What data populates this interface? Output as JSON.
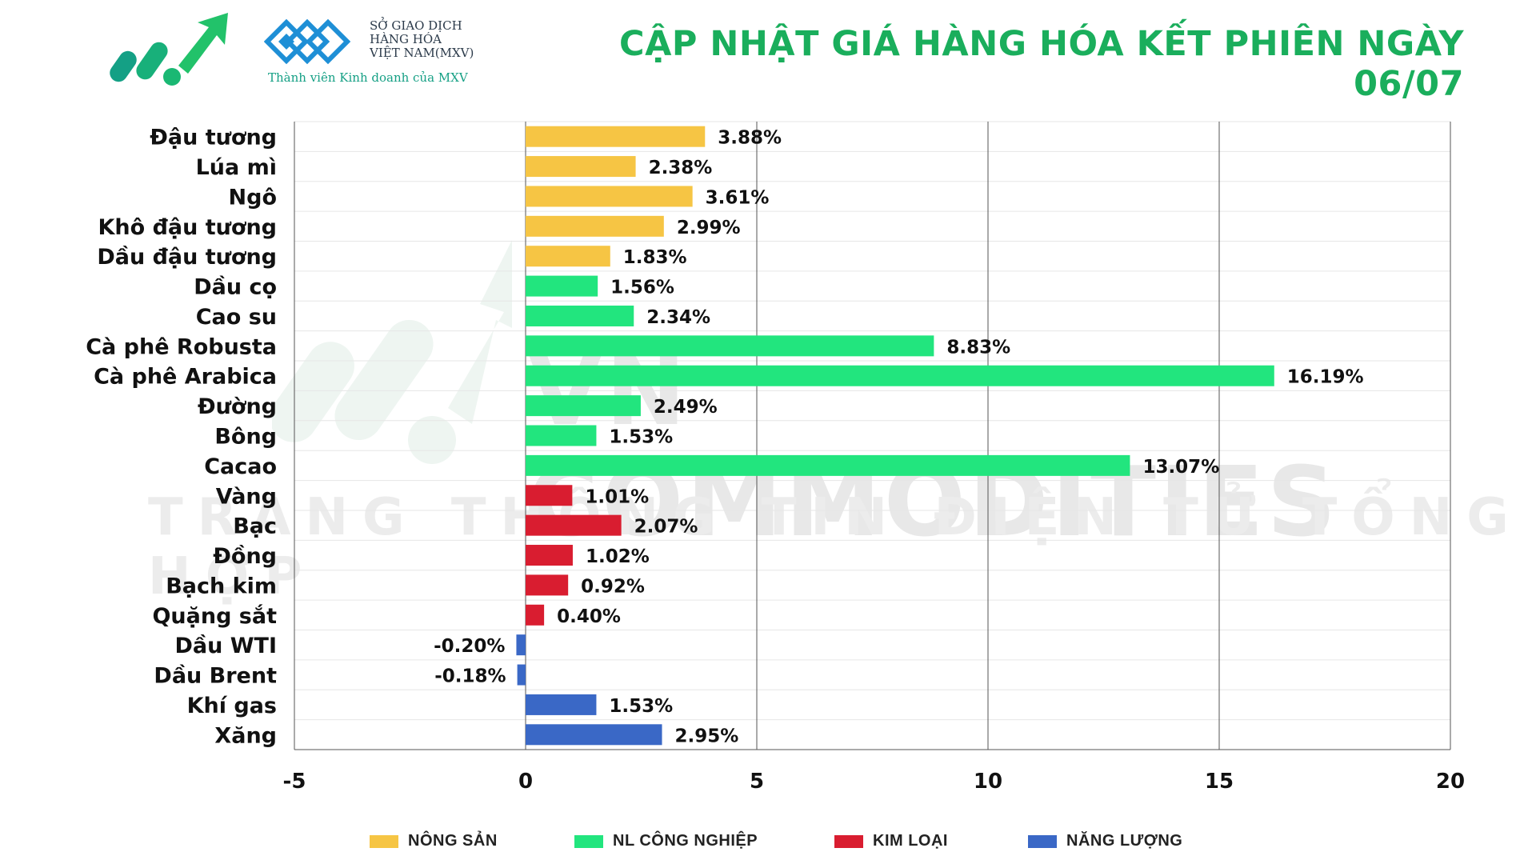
{
  "header": {
    "mxv_line1": "SỞ GIAO DỊCH",
    "mxv_line2": "HÀNG HÓA",
    "mxv_line3": "VIỆT NAM(MXV)",
    "mxv_subtitle": "Thành viên Kinh doanh của MXV",
    "title": "CẬP NHẬT GIÁ HÀNG HÓA KẾT PHIÊN NGÀY 06/07"
  },
  "watermark": {
    "line1": "VN COMMODITIES",
    "line2": "TRANG THÔNG TIN ĐIỆN TỬ TỔNG HỢP"
  },
  "colors": {
    "nong_san": "#f6c544",
    "nl_cong_nghiep": "#22e57e",
    "kim_loai": "#d91d30",
    "nang_luong": "#3a68c6",
    "title": "#1aae5c"
  },
  "legend": [
    {
      "label": "NÔNG SẢN",
      "color": "#f6c544"
    },
    {
      "label": "NL CÔNG NGHIỆP",
      "color": "#22e57e"
    },
    {
      "label": "KIM LOẠI",
      "color": "#d91d30"
    },
    {
      "label": "NĂNG LƯỢNG",
      "color": "#3a68c6"
    }
  ],
  "chart_data": {
    "type": "bar",
    "orientation": "horizontal",
    "title": "CẬP NHẬT GIÁ HÀNG HÓA KẾT PHIÊN NGÀY 06/07",
    "xlabel": "",
    "ylabel": "",
    "xlim": [
      -5,
      20
    ],
    "xticks": [
      -5,
      0,
      5,
      10,
      15,
      20
    ],
    "grid": "vertical",
    "legend_position": "bottom",
    "categories": [
      "Đậu tương",
      "Lúa mì",
      "Ngô",
      "Khô đậu tương",
      "Dầu đậu tương",
      "Dầu cọ",
      "Cao su",
      "Cà phê Robusta",
      "Cà phê Arabica",
      "Đường",
      "Bông",
      "Cacao",
      "Vàng",
      "Bạc",
      "Đồng",
      "Bạch kim",
      "Quặng sắt",
      "Dầu WTI",
      "Dầu Brent",
      "Khí gas",
      "Xăng"
    ],
    "values": [
      3.88,
      2.38,
      3.61,
      2.99,
      1.83,
      1.56,
      2.34,
      8.83,
      16.19,
      2.49,
      1.53,
      13.07,
      1.01,
      2.07,
      1.02,
      0.92,
      0.4,
      -0.2,
      -0.18,
      1.53,
      2.95
    ],
    "labels": [
      "3.88%",
      "2.38%",
      "3.61%",
      "2.99%",
      "1.83%",
      "1.56%",
      "2.34%",
      "8.83%",
      "16.19%",
      "2.49%",
      "1.53%",
      "13.07%",
      "1.01%",
      "2.07%",
      "1.02%",
      "0.92%",
      "0.40%",
      "-0.20%",
      "-0.18%",
      "1.53%",
      "2.95%"
    ],
    "groups": [
      "NÔNG SẢN",
      "NÔNG SẢN",
      "NÔNG SẢN",
      "NÔNG SẢN",
      "NÔNG SẢN",
      "NL CÔNG NGHIỆP",
      "NL CÔNG NGHIỆP",
      "NL CÔNG NGHIỆP",
      "NL CÔNG NGHIỆP",
      "NL CÔNG NGHIỆP",
      "NL CÔNG NGHIỆP",
      "NL CÔNG NGHIỆP",
      "KIM LOẠI",
      "KIM LOẠI",
      "KIM LOẠI",
      "KIM LOẠI",
      "KIM LOẠI",
      "NĂNG LƯỢNG",
      "NĂNG LƯỢNG",
      "NĂNG LƯỢNG",
      "NĂNG LƯỢNG"
    ]
  }
}
